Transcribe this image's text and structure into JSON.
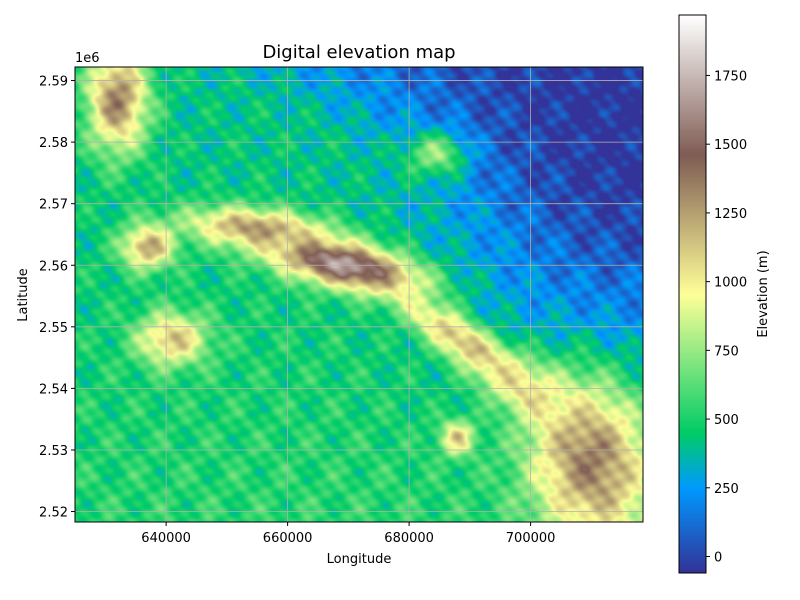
{
  "chart_data": {
    "type": "heatmap",
    "title": "Digital elevation map",
    "xlabel": "Longitude",
    "ylabel": "Latitude",
    "y_offset_label": "1e6",
    "colorbar_label": "Elevation (m)",
    "colormap": "terrain",
    "grid": true,
    "xlim": [
      625000,
      718500
    ],
    "ylim": [
      2518300,
      2592200
    ],
    "x_ticks": [
      640000,
      660000,
      680000,
      700000
    ],
    "x_tick_labels": [
      "640000",
      "660000",
      "680000",
      "700000"
    ],
    "y_ticks": [
      2520000,
      2530000,
      2540000,
      2550000,
      2560000,
      2570000,
      2580000,
      2590000
    ],
    "y_tick_labels": [
      "2.52",
      "2.53",
      "2.54",
      "2.55",
      "2.56",
      "2.57",
      "2.58",
      "2.59"
    ],
    "colorbar_range": [
      -60,
      1970
    ],
    "colorbar_ticks": [
      0,
      250,
      500,
      750,
      1000,
      1250,
      1500,
      1750
    ],
    "colorbar_tick_labels": [
      "0",
      "250",
      "500",
      "750",
      "1000",
      "1250",
      "1500",
      "1750"
    ],
    "colorbar_position": "right",
    "elevation_features": [
      {
        "type": "ridge",
        "lon": 670000,
        "lat": 2560000,
        "elev": 1800,
        "sx": 9000,
        "sy": 2600,
        "angle": -12
      },
      {
        "type": "ridge",
        "lon": 690000,
        "lat": 2547000,
        "elev": 1500,
        "sx": 9000,
        "sy": 2300,
        "angle": -35
      },
      {
        "type": "ridge",
        "lon": 710000,
        "lat": 2530000,
        "elev": 1650,
        "sx": 7000,
        "sy": 10000,
        "angle": 10
      },
      {
        "type": "ridge",
        "lon": 655000,
        "lat": 2566000,
        "elev": 1300,
        "sx": 8000,
        "sy": 2200,
        "angle": -5
      },
      {
        "type": "ridge",
        "lon": 632000,
        "lat": 2587000,
        "elev": 1350,
        "sx": 3500,
        "sy": 6000,
        "angle": 0
      },
      {
        "type": "ridge",
        "lon": 637000,
        "lat": 2563000,
        "elev": 1250,
        "sx": 3000,
        "sy": 2500,
        "angle": 0
      },
      {
        "type": "ridge",
        "lon": 641000,
        "lat": 2548000,
        "elev": 1150,
        "sx": 4000,
        "sy": 3000,
        "angle": 0
      },
      {
        "type": "ridge",
        "lon": 685000,
        "lat": 2578000,
        "elev": 1100,
        "sx": 3500,
        "sy": 2500,
        "angle": 0
      },
      {
        "type": "ridge",
        "lon": 700000,
        "lat": 2540000,
        "elev": 1400,
        "sx": 6000,
        "sy": 3000,
        "angle": -30
      },
      {
        "type": "ridge",
        "lon": 688000,
        "lat": 2532000,
        "elev": 1200,
        "sx": 2000,
        "sy": 2000,
        "angle": 0
      },
      {
        "type": "lowland",
        "lon": 715000,
        "lat": 2585000,
        "elev": -60,
        "sx": 20000,
        "sy": 30000,
        "angle": 0
      }
    ]
  }
}
